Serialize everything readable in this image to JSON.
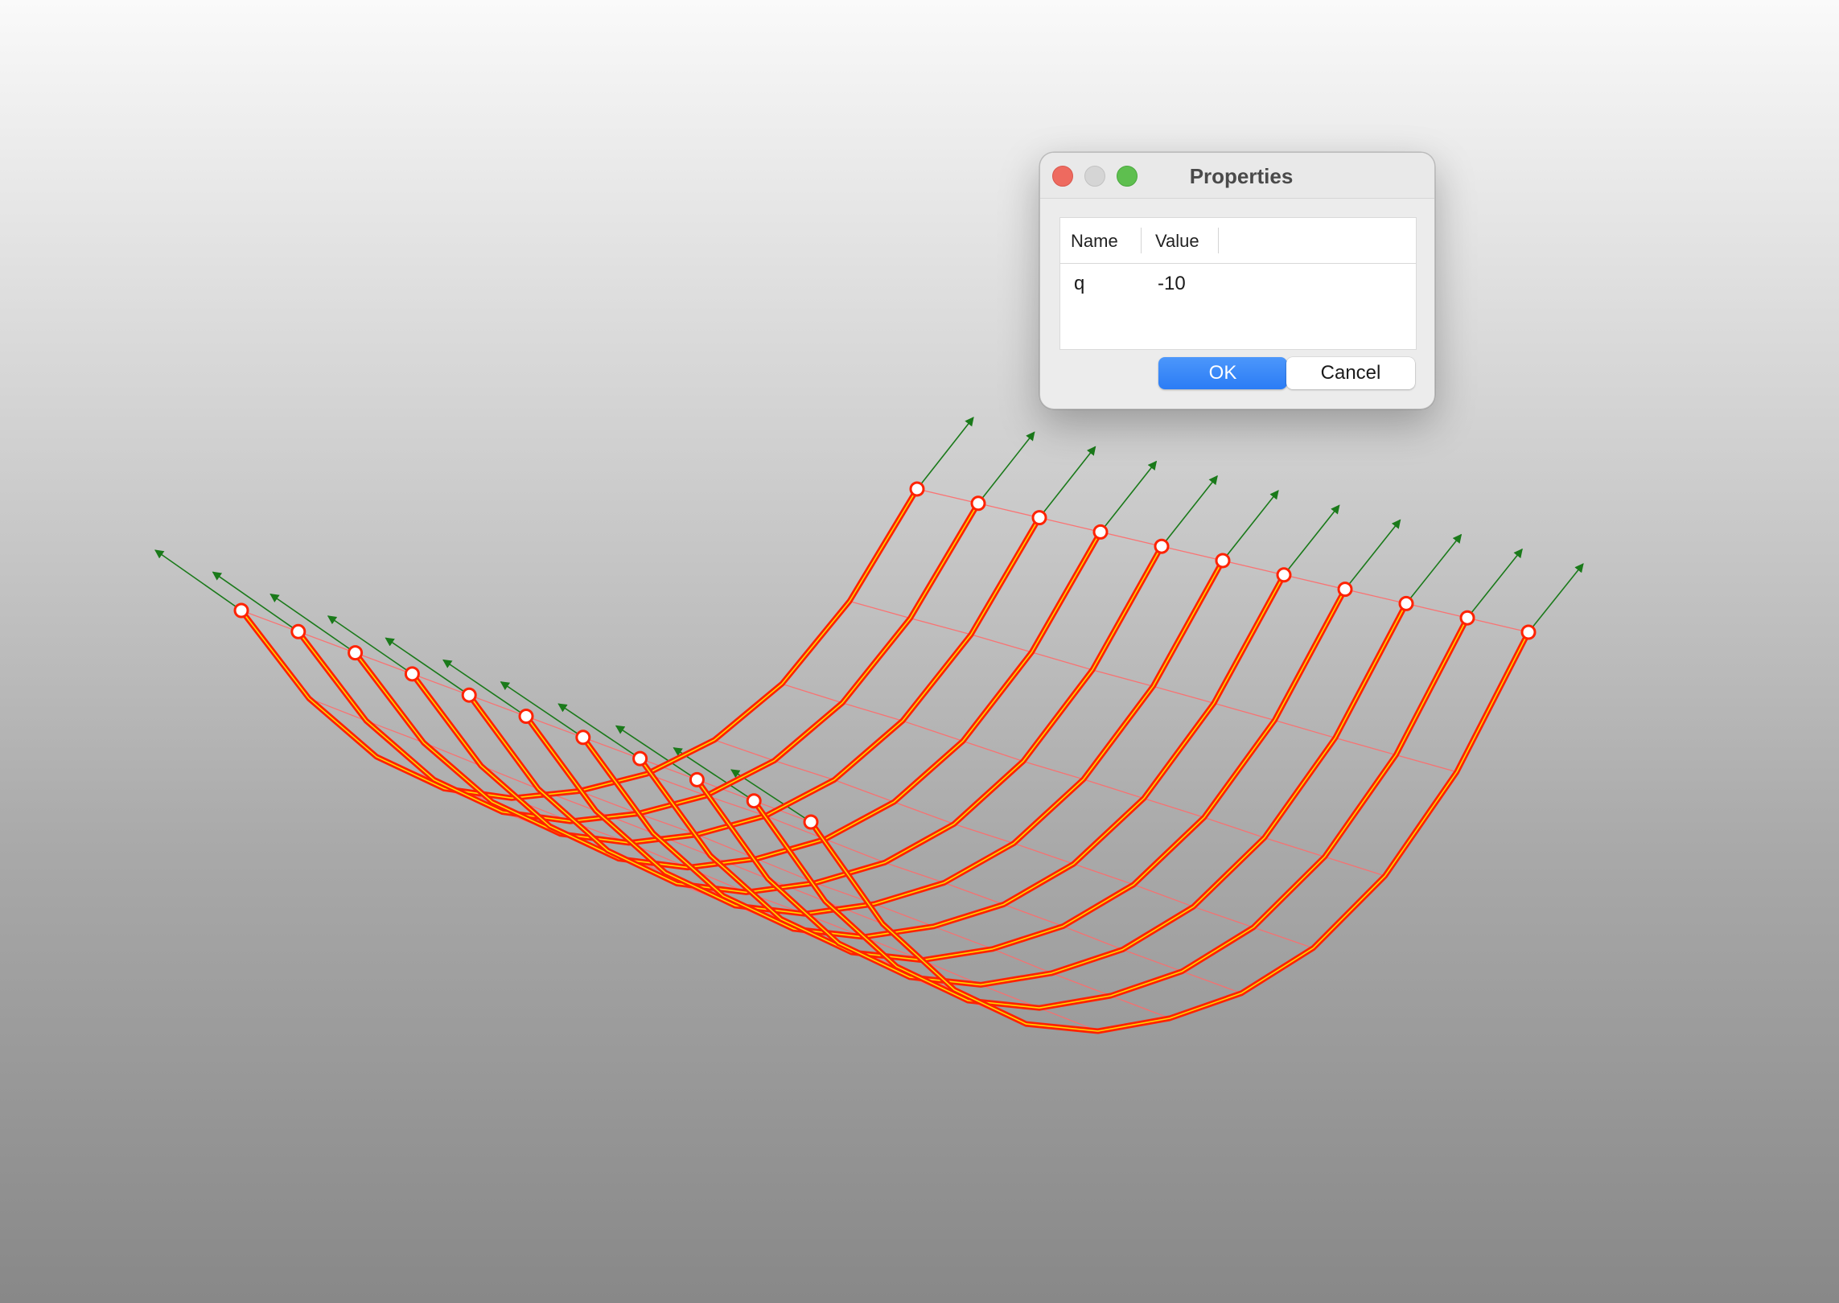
{
  "viewport": {
    "mesh_color": "#ff2200",
    "highlight_color": "#ffd800",
    "load_arrow_color": "#1a7a1a",
    "grid_line_color": "#ff6a6a"
  },
  "dialog": {
    "title": "Properties",
    "window_controls": [
      "close-icon",
      "minimize-icon",
      "maximize-icon"
    ],
    "table": {
      "columns": [
        "Name",
        "Value"
      ],
      "rows": [
        {
          "name": "q",
          "value": "-10"
        }
      ]
    },
    "ok_label": "OK",
    "cancel_label": "Cancel"
  }
}
